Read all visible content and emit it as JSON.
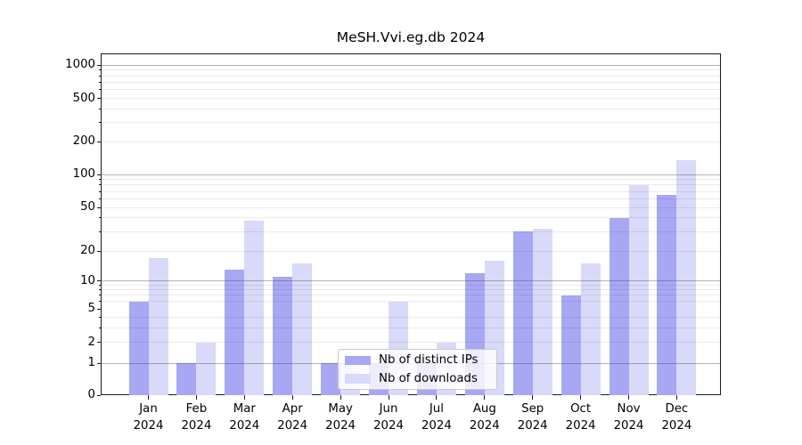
{
  "chart_data": {
    "type": "bar",
    "title": "MeSH.Vvi.eg.db 2024",
    "categories": [
      "Jan",
      "Feb",
      "Mar",
      "Apr",
      "May",
      "Jun",
      "Jul",
      "Aug",
      "Sep",
      "Oct",
      "Nov",
      "Dec"
    ],
    "category_year": "2024",
    "series": [
      {
        "name": "Nb of distinct IPs",
        "color": "#a7a7f3",
        "values": [
          6,
          1,
          13,
          11,
          1,
          1,
          1,
          12,
          30,
          7,
          40,
          65
        ]
      },
      {
        "name": "Nb of downloads",
        "color": "#d9d9f9",
        "values": [
          17,
          2,
          38,
          15,
          1,
          6,
          2,
          16,
          32,
          15,
          80,
          135
        ]
      }
    ],
    "yscale": "symlog",
    "ylim": [
      0,
      1280
    ],
    "yticks": [
      0,
      1,
      2,
      5,
      10,
      20,
      50,
      100,
      200,
      500,
      1000
    ],
    "y_major_gridlines": [
      1,
      10,
      100,
      1000
    ],
    "y_minor_gridlines": [
      2,
      3,
      4,
      6,
      7,
      8,
      9,
      20,
      30,
      40,
      50,
      60,
      70,
      80,
      90,
      200,
      300,
      400,
      500,
      600,
      700,
      800,
      900
    ],
    "grid": true,
    "legend_position": "lower-center-inside",
    "bar_colors": {
      "ips": "#a7a7f3",
      "downloads": "#d9d9f9"
    }
  }
}
